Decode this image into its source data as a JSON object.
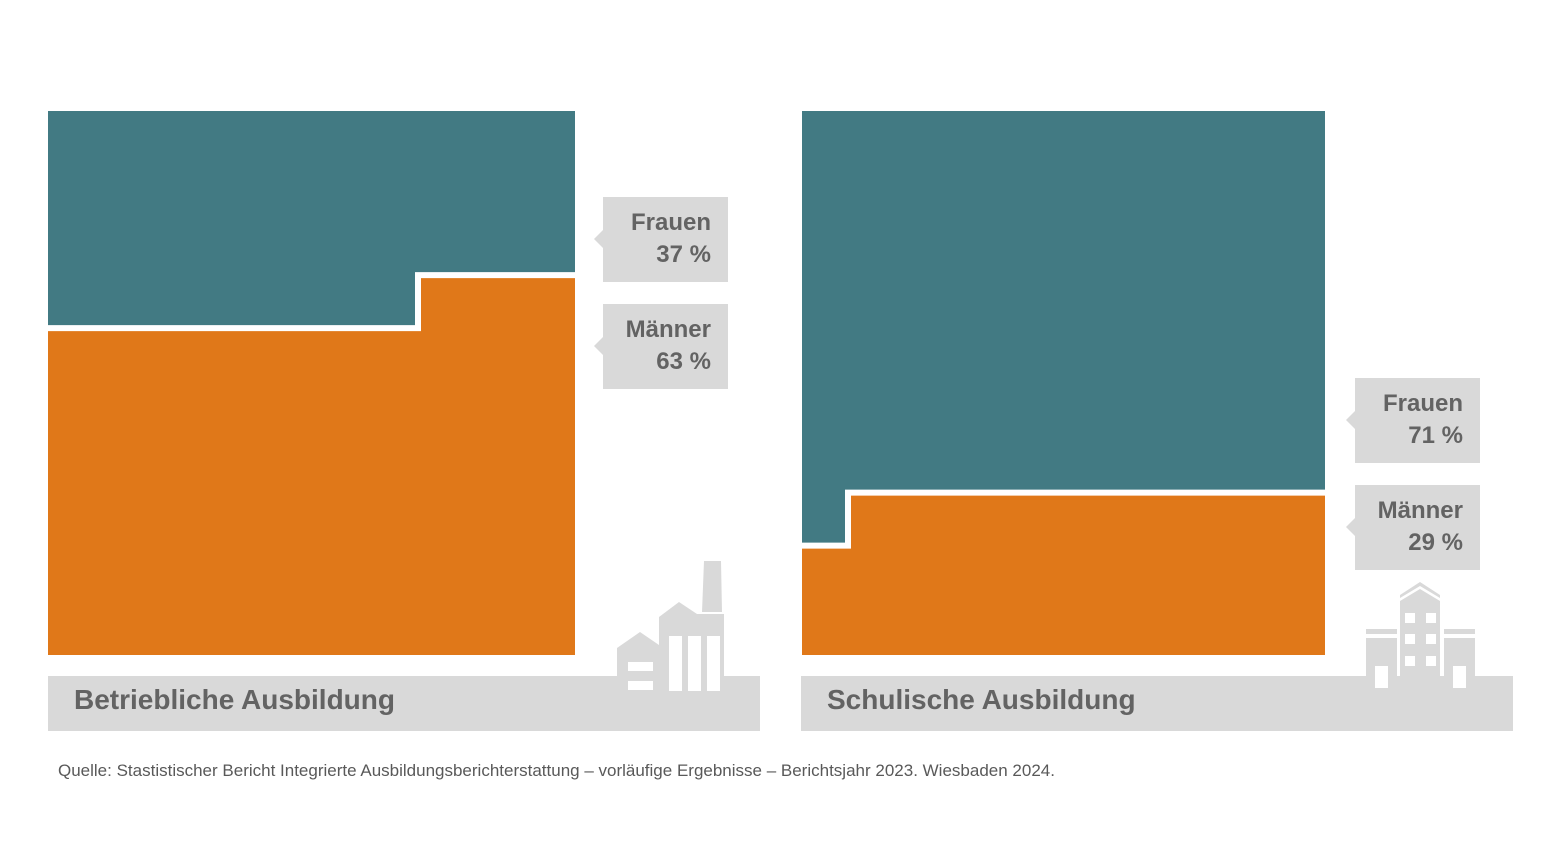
{
  "chart_data": [
    {
      "type": "area",
      "title": "Betriebliche Ausbildung",
      "series": [
        {
          "name": "Frauen",
          "value": 37,
          "label": "37 %"
        },
        {
          "name": "Männer",
          "value": 63,
          "label": "63 %"
        }
      ],
      "icon": "factory-icon"
    },
    {
      "type": "area",
      "title": "Schulische Ausbildung",
      "series": [
        {
          "name": "Frauen",
          "value": 71,
          "label": "71 %"
        },
        {
          "name": "Männer",
          "value": 29,
          "label": "29 %"
        }
      ],
      "icon": "school-icon"
    }
  ],
  "colors": {
    "frauen": "#427a83",
    "maenner": "#e07819",
    "label_bg": "#d9d9d9"
  },
  "source": "Quelle: Stastistischer Bericht Integrierte Ausbildungsberichterstattung – vorläufige Ergebnisse – Berichtsjahr 2023. Wiesbaden 2024."
}
